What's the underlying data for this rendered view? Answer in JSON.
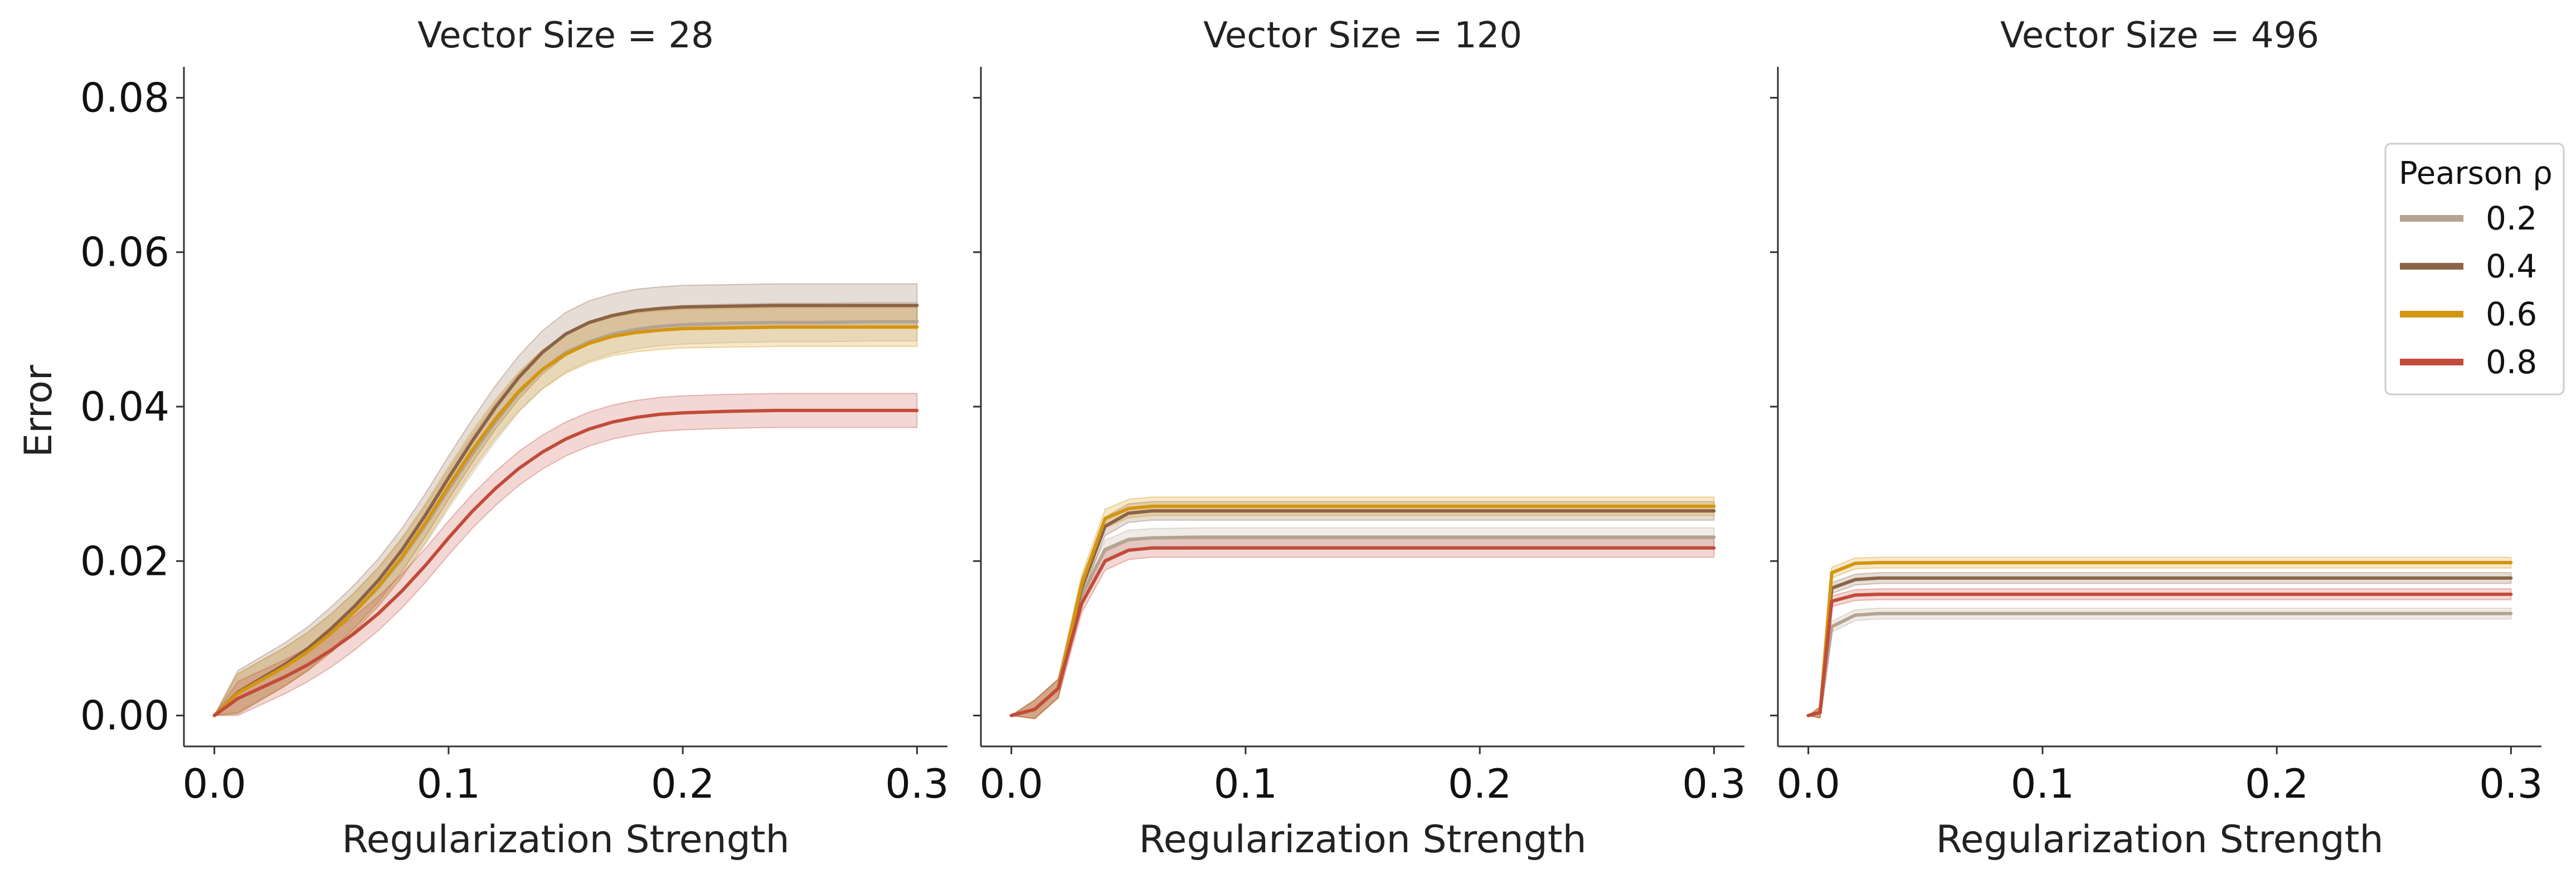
{
  "chart_data": {
    "type": "line",
    "ylabel": "Error",
    "yticks": [
      "0.00",
      "0.02",
      "0.04",
      "0.06",
      "0.08"
    ],
    "ylim": [
      -0.004,
      0.084
    ],
    "xlim": [
      -0.013,
      0.313
    ],
    "xticks": [
      "0.0",
      "0.1",
      "0.2",
      "0.3"
    ],
    "grid": false,
    "legend": {
      "title": "Pearson ρ",
      "position": "right",
      "entries": [
        {
          "label": "0.2",
          "color": "#b5a392"
        },
        {
          "label": "0.4",
          "color": "#8c6347"
        },
        {
          "label": "0.6",
          "color": "#d4950f"
        },
        {
          "label": "0.8",
          "color": "#c24b3b"
        }
      ]
    },
    "panels": [
      {
        "title": "Vector Size = 28",
        "xlabel": "Regularization Strength",
        "x": [
          0,
          0.01,
          0.02,
          0.03,
          0.04,
          0.05,
          0.06,
          0.07,
          0.08,
          0.09,
          0.1,
          0.11,
          0.12,
          0.13,
          0.14,
          0.15,
          0.16,
          0.17,
          0.18,
          0.19,
          0.2,
          0.22,
          0.24,
          0.26,
          0.28,
          0.3
        ],
        "series": [
          {
            "name": "0.2",
            "color": "#b5a392",
            "band": 0.0025,
            "values": [
              0,
              0.0029,
              0.0046,
              0.0063,
              0.0083,
              0.0107,
              0.0135,
              0.0166,
              0.0203,
              0.0246,
              0.0293,
              0.0338,
              0.038,
              0.0418,
              0.0448,
              0.047,
              0.0484,
              0.0494,
              0.05,
              0.0504,
              0.0506,
              0.0508,
              0.0509,
              0.0509,
              0.051,
              0.051
            ]
          },
          {
            "name": "0.4",
            "color": "#8c6347",
            "band": 0.0028,
            "values": [
              0,
              0.003,
              0.0048,
              0.0066,
              0.0087,
              0.0113,
              0.0142,
              0.0175,
              0.0214,
              0.0259,
              0.0308,
              0.0355,
              0.0399,
              0.0438,
              0.047,
              0.0494,
              0.0509,
              0.0518,
              0.0524,
              0.0527,
              0.0529,
              0.053,
              0.0531,
              0.0531,
              0.0531,
              0.0531
            ]
          },
          {
            "name": "0.6",
            "color": "#d4950f",
            "band": 0.0025,
            "values": [
              0,
              0.0029,
              0.0046,
              0.0063,
              0.0083,
              0.0107,
              0.0135,
              0.0167,
              0.0205,
              0.0249,
              0.0297,
              0.0343,
              0.0384,
              0.042,
              0.0448,
              0.0468,
              0.0482,
              0.0491,
              0.0496,
              0.0499,
              0.0501,
              0.0502,
              0.0503,
              0.0503,
              0.0503,
              0.0503
            ]
          },
          {
            "name": "0.8",
            "color": "#c24b3b",
            "band": 0.0022,
            "values": [
              0,
              0.0022,
              0.0036,
              0.005,
              0.0066,
              0.0085,
              0.0107,
              0.0132,
              0.0161,
              0.0194,
              0.023,
              0.0264,
              0.0294,
              0.032,
              0.0341,
              0.0358,
              0.0371,
              0.038,
              0.0386,
              0.039,
              0.0392,
              0.0394,
              0.0395,
              0.0395,
              0.0395,
              0.0395
            ]
          }
        ]
      },
      {
        "title": "Vector Size = 120",
        "xlabel": "Regularization Strength",
        "x": [
          0,
          0.01,
          0.02,
          0.03,
          0.04,
          0.05,
          0.06,
          0.08,
          0.1,
          0.15,
          0.2,
          0.25,
          0.3
        ],
        "series": [
          {
            "name": "0.2",
            "color": "#b5a392",
            "band": 0.0012,
            "values": [
              0,
              0.0008,
              0.0035,
              0.0155,
              0.0215,
              0.0228,
              0.023,
              0.0231,
              0.0231,
              0.0231,
              0.0231,
              0.0231,
              0.0231
            ]
          },
          {
            "name": "0.4",
            "color": "#8c6347",
            "band": 0.0012,
            "values": [
              0,
              0.0008,
              0.0035,
              0.0165,
              0.0245,
              0.0262,
              0.0265,
              0.0265,
              0.0265,
              0.0265,
              0.0265,
              0.0265,
              0.0265
            ]
          },
          {
            "name": "0.6",
            "color": "#d4950f",
            "band": 0.0012,
            "values": [
              0,
              0.0008,
              0.0035,
              0.017,
              0.0255,
              0.0268,
              0.0271,
              0.0271,
              0.0271,
              0.0271,
              0.0271,
              0.0271,
              0.0271
            ]
          },
          {
            "name": "0.8",
            "color": "#c24b3b",
            "band": 0.0012,
            "values": [
              0,
              0.0008,
              0.0035,
              0.0145,
              0.02,
              0.0214,
              0.0217,
              0.0217,
              0.0217,
              0.0217,
              0.0217,
              0.0217,
              0.0217
            ]
          }
        ]
      },
      {
        "title": "Vector Size = 496",
        "xlabel": "Regularization Strength",
        "x": [
          0,
          0.005,
          0.01,
          0.02,
          0.03,
          0.05,
          0.1,
          0.15,
          0.2,
          0.25,
          0.3
        ],
        "series": [
          {
            "name": "0.2",
            "color": "#b5a392",
            "band": 0.0007,
            "values": [
              0,
              0.0004,
              0.0115,
              0.013,
              0.0132,
              0.0132,
              0.0132,
              0.0132,
              0.0132,
              0.0132,
              0.0132
            ]
          },
          {
            "name": "0.4",
            "color": "#8c6347",
            "band": 0.0007,
            "values": [
              0,
              0.0004,
              0.0165,
              0.0176,
              0.0178,
              0.0178,
              0.0178,
              0.0178,
              0.0178,
              0.0178,
              0.0178
            ]
          },
          {
            "name": "0.6",
            "color": "#d4950f",
            "band": 0.0007,
            "values": [
              0,
              0.0004,
              0.0185,
              0.0197,
              0.0198,
              0.0198,
              0.0198,
              0.0198,
              0.0198,
              0.0198,
              0.0198
            ]
          },
          {
            "name": "0.8",
            "color": "#c24b3b",
            "band": 0.0007,
            "values": [
              0,
              0.0004,
              0.0148,
              0.0156,
              0.0157,
              0.0157,
              0.0157,
              0.0157,
              0.0157,
              0.0157,
              0.0157
            ]
          }
        ]
      }
    ]
  }
}
